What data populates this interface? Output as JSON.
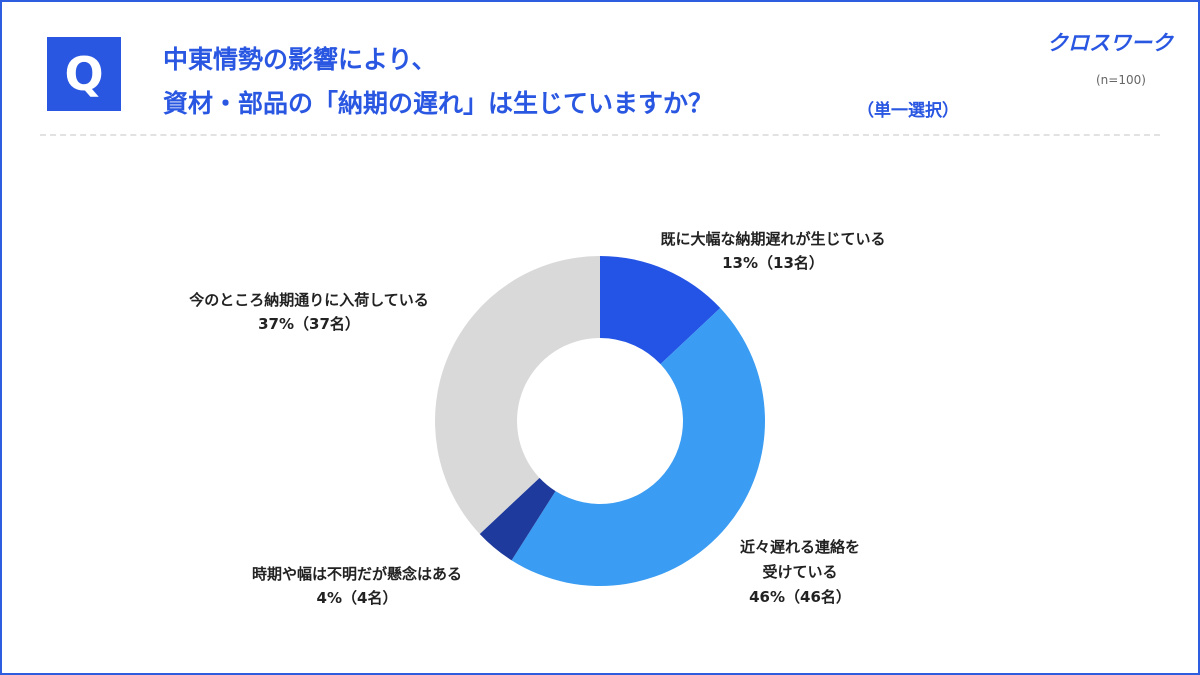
{
  "header": {
    "q_label": "Q",
    "title_line1": "中東情勢の影響により、",
    "title_line2": "資材・部品の「納期の遅れ」は生じていますか？",
    "note": "（単一選択）",
    "logo": "クロスワーク",
    "sample": "(n=100)"
  },
  "colors": {
    "accent": "#2a57e2"
  },
  "chart_data": {
    "type": "pie",
    "donut": true,
    "categories": [
      "既に大幅な納期遅れが生じている",
      "近々遅れる連絡を受けている",
      "時期や幅は不明だが懸念はある",
      "今のところ納期通りに入荷している"
    ],
    "values": [
      13,
      46,
      4,
      37
    ],
    "colors": [
      "#2454e6",
      "#3a9cf2",
      "#1e3a9c",
      "#d9d9d9"
    ],
    "labels": [
      {
        "lines": [
          "既に大幅な納期遅れが生じている",
          "13%（13名）"
        ]
      },
      {
        "lines": [
          "近々遅れる連絡を",
          "受けている",
          "46%（46名）"
        ]
      },
      {
        "lines": [
          "時期や幅は不明だが懸念はある",
          "4%（4名）"
        ]
      },
      {
        "lines": [
          "今のところ納期通りに入荷している",
          "37%（37名）"
        ]
      }
    ]
  }
}
